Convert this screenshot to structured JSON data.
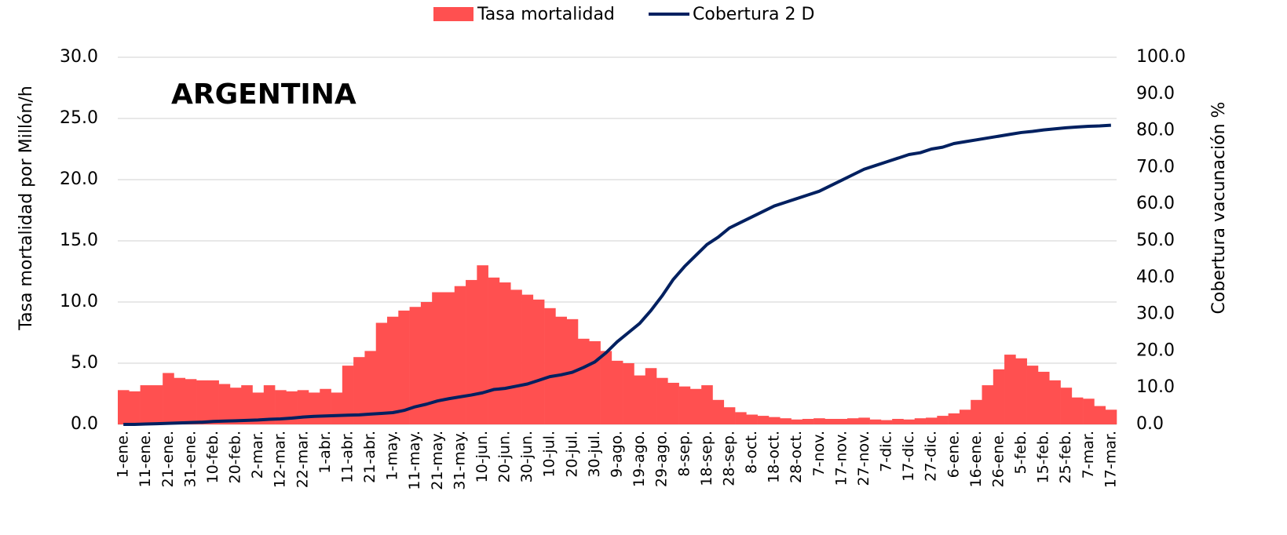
{
  "chart_data": {
    "type": "bar",
    "annotation": "ARGENTINA",
    "ylabel": "Tasa mortalidad por Millón/h",
    "y2label": "Cobertura vacunación %",
    "legend": "top",
    "grid": true,
    "categories": [
      "1-ene.",
      null,
      "11-ene.",
      null,
      "21-ene.",
      null,
      "31-ene.",
      null,
      "10-feb.",
      null,
      "20-feb.",
      null,
      "2-mar.",
      null,
      "12-mar.",
      null,
      "22-mar.",
      null,
      "1-abr.",
      null,
      "11-abr.",
      null,
      "21-abr.",
      null,
      "1-may.",
      null,
      "11-may.",
      null,
      "21-may.",
      null,
      "31-may.",
      null,
      "10-jun.",
      null,
      "20-jun.",
      null,
      "30-jun.",
      null,
      "10-jul.",
      null,
      "20-jul.",
      null,
      "30-jul.",
      null,
      "9-ago.",
      null,
      "19-ago.",
      null,
      "29-ago.",
      null,
      "8-sep.",
      null,
      "18-sep.",
      null,
      "28-sep.",
      null,
      "8-oct.",
      null,
      "18-oct.",
      null,
      "28-oct.",
      null,
      "7-nov.",
      null,
      "17-nov.",
      null,
      "27-nov.",
      null,
      "7-dic.",
      null,
      "17-dic.",
      null,
      "27-dic.",
      null,
      "6-ene.",
      null,
      "16-ene.",
      null,
      "26-ene.",
      null,
      "5-feb.",
      null,
      "15-feb.",
      null,
      "25-feb.",
      null,
      "7-mar.",
      null,
      "17-mar."
    ],
    "series": [
      {
        "name": "Tasa mortalidad",
        "type": "bar",
        "color": "#ff5050",
        "values": [
          2.8,
          2.7,
          3.2,
          3.2,
          4.2,
          3.8,
          3.7,
          3.6,
          3.6,
          3.3,
          3.0,
          3.2,
          2.6,
          3.2,
          2.8,
          2.7,
          2.8,
          2.6,
          2.9,
          2.6,
          4.8,
          5.5,
          6.0,
          8.3,
          8.8,
          9.3,
          9.6,
          10.0,
          10.8,
          10.8,
          11.3,
          11.8,
          13.0,
          12.0,
          11.6,
          11.0,
          10.6,
          10.2,
          9.5,
          8.8,
          8.6,
          7.0,
          6.8,
          6.0,
          5.2,
          5.0,
          4.0,
          4.6,
          3.8,
          3.4,
          3.1,
          2.9,
          3.2,
          2.0,
          1.4,
          1.0,
          0.8,
          0.7,
          0.6,
          0.5,
          0.4,
          0.45,
          0.5,
          0.45,
          0.45,
          0.5,
          0.55,
          0.4,
          0.35,
          0.45,
          0.4,
          0.5,
          0.55,
          0.7,
          0.9,
          1.2,
          2.0,
          3.2,
          4.5,
          5.7,
          5.4,
          4.8,
          4.3,
          3.6,
          3.0,
          2.2,
          2.1,
          1.5,
          1.2
        ]
      },
      {
        "name": "Cobertura 2 D",
        "type": "line",
        "axis": "y2",
        "color": "#002060",
        "values": [
          0,
          0,
          0.1,
          0.2,
          0.3,
          0.4,
          0.5,
          0.6,
          0.8,
          0.9,
          1.0,
          1.1,
          1.2,
          1.4,
          1.5,
          1.7,
          2.0,
          2.2,
          2.3,
          2.4,
          2.5,
          2.6,
          2.8,
          3.0,
          3.2,
          3.8,
          4.8,
          5.5,
          6.4,
          7.0,
          7.5,
          8.0,
          8.6,
          9.5,
          9.8,
          10.4,
          11.0,
          12.0,
          13.0,
          13.5,
          14.2,
          15.5,
          17.0,
          19.5,
          22.5,
          25.0,
          27.5,
          31.0,
          35.0,
          39.5,
          43.0,
          46.0,
          49.0,
          51.0,
          53.5,
          55.0,
          56.5,
          58.0,
          59.5,
          60.5,
          61.5,
          62.5,
          63.5,
          65.0,
          66.5,
          68.0,
          69.5,
          70.5,
          71.5,
          72.5,
          73.5,
          74.0,
          75.0,
          75.5,
          76.5,
          77.0,
          77.5,
          78.0,
          78.5,
          79.0,
          79.5,
          79.8,
          80.2,
          80.5,
          80.8,
          81.0,
          81.2,
          81.3,
          81.5
        ]
      }
    ],
    "ylim": [
      0,
      30
    ],
    "yticks": [
      {
        "value": 0,
        "label": "0.0"
      },
      {
        "value": 5,
        "label": "5.0"
      },
      {
        "value": 10,
        "label": "10.0"
      },
      {
        "value": 15,
        "label": "15.0"
      },
      {
        "value": 20,
        "label": "20.0"
      },
      {
        "value": 25,
        "label": "25.0"
      },
      {
        "value": 30,
        "label": "30.0"
      }
    ],
    "y2lim": [
      0,
      100
    ],
    "y2ticks": [
      {
        "value": 0,
        "label": "0.0"
      },
      {
        "value": 10,
        "label": "10.0"
      },
      {
        "value": 20,
        "label": "20.0"
      },
      {
        "value": 30,
        "label": "30.0"
      },
      {
        "value": 40,
        "label": "40.0"
      },
      {
        "value": 50,
        "label": "50.0"
      },
      {
        "value": 60,
        "label": "60.0"
      },
      {
        "value": 70,
        "label": "70.0"
      },
      {
        "value": 80,
        "label": "80.0"
      },
      {
        "value": 90,
        "label": "90.0"
      },
      {
        "value": 100,
        "label": "100.0"
      }
    ]
  }
}
